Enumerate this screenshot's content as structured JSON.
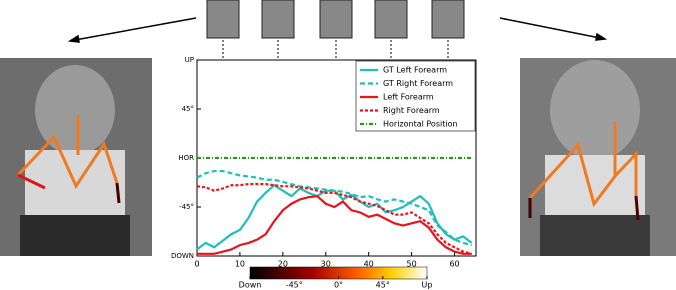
{
  "chart_data": {
    "type": "line",
    "x": [
      0,
      2,
      4,
      6,
      8,
      10,
      12,
      14,
      16,
      18,
      20,
      22,
      24,
      26,
      28,
      30,
      32,
      34,
      36,
      38,
      40,
      42,
      44,
      46,
      48,
      50,
      52,
      54,
      56,
      58,
      60,
      62,
      64
    ],
    "xlim": [
      0,
      65
    ],
    "xticks": [
      0,
      10,
      20,
      30,
      40,
      50,
      60
    ],
    "ylim": [
      -90,
      90
    ],
    "yticks": [
      {
        "value": 90,
        "label": "UP"
      },
      {
        "value": 45,
        "label": "45°"
      },
      {
        "value": 0,
        "label": "HOR"
      },
      {
        "value": -45,
        "label": "-45°"
      },
      {
        "value": -90,
        "label": "DOWN"
      }
    ],
    "legend": "upper right",
    "series": [
      {
        "name": "GT Left Forearm",
        "color": "#1fbfb8",
        "dash": "solid",
        "values": [
          -84,
          -78,
          -82,
          -76,
          -70,
          -66,
          -55,
          -40,
          -32,
          -25,
          -30,
          -35,
          -28,
          -32,
          -35,
          -30,
          -30,
          -38,
          -34,
          -40,
          -45,
          -42,
          -50,
          -48,
          -45,
          -40,
          -35,
          -42,
          -60,
          -70,
          -75,
          -72,
          -78
        ]
      },
      {
        "name": "GT Right Forearm",
        "color": "#1fbfb8",
        "dash": "dashed",
        "values": [
          -18,
          -14,
          -12,
          -12,
          -14,
          -16,
          -17,
          -18,
          -20,
          -20,
          -22,
          -24,
          -26,
          -27,
          -28,
          -29,
          -30,
          -31,
          -33,
          -36,
          -35,
          -38,
          -40,
          -38,
          -40,
          -42,
          -45,
          -48,
          -62,
          -68,
          -75,
          -78,
          -80
        ]
      },
      {
        "name": "Left Forearm",
        "color": "#e8141c",
        "dash": "solid",
        "values": [
          -88,
          -88,
          -88,
          -86,
          -84,
          -80,
          -78,
          -75,
          -70,
          -58,
          -48,
          -42,
          -38,
          -36,
          -35,
          -42,
          -45,
          -40,
          -48,
          -50,
          -54,
          -52,
          -56,
          -60,
          -62,
          -60,
          -58,
          -64,
          -75,
          -82,
          -86,
          -88,
          -88
        ]
      },
      {
        "name": "Right Forearm",
        "color": "#e8141c",
        "dash": "dotted",
        "values": [
          -26,
          -27,
          -30,
          -28,
          -25,
          -25,
          -24,
          -24,
          -24,
          -25,
          -26,
          -26,
          -27,
          -28,
          -30,
          -32,
          -32,
          -34,
          -36,
          -40,
          -42,
          -44,
          -48,
          -52,
          -52,
          -50,
          -55,
          -60,
          -70,
          -78,
          -82,
          -86,
          -88
        ]
      },
      {
        "name": "Horizontal Position",
        "color": "#2a9a1a",
        "dash": "dashdot",
        "values": [
          0,
          0,
          0,
          0,
          0,
          0,
          0,
          0,
          0,
          0,
          0,
          0,
          0,
          0,
          0,
          0,
          0,
          0,
          0,
          0,
          0,
          0,
          0,
          0,
          0,
          0,
          0,
          0,
          0,
          0,
          0,
          0,
          0
        ]
      }
    ],
    "colorbar": {
      "lim": [
        -90,
        90
      ],
      "ticks": [
        {
          "value": -90,
          "label": "Down"
        },
        {
          "value": -45,
          "label": "-45°"
        },
        {
          "value": 0,
          "label": "0°"
        },
        {
          "value": 45,
          "label": "45°"
        },
        {
          "value": 90,
          "label": "Up"
        }
      ]
    }
  }
}
